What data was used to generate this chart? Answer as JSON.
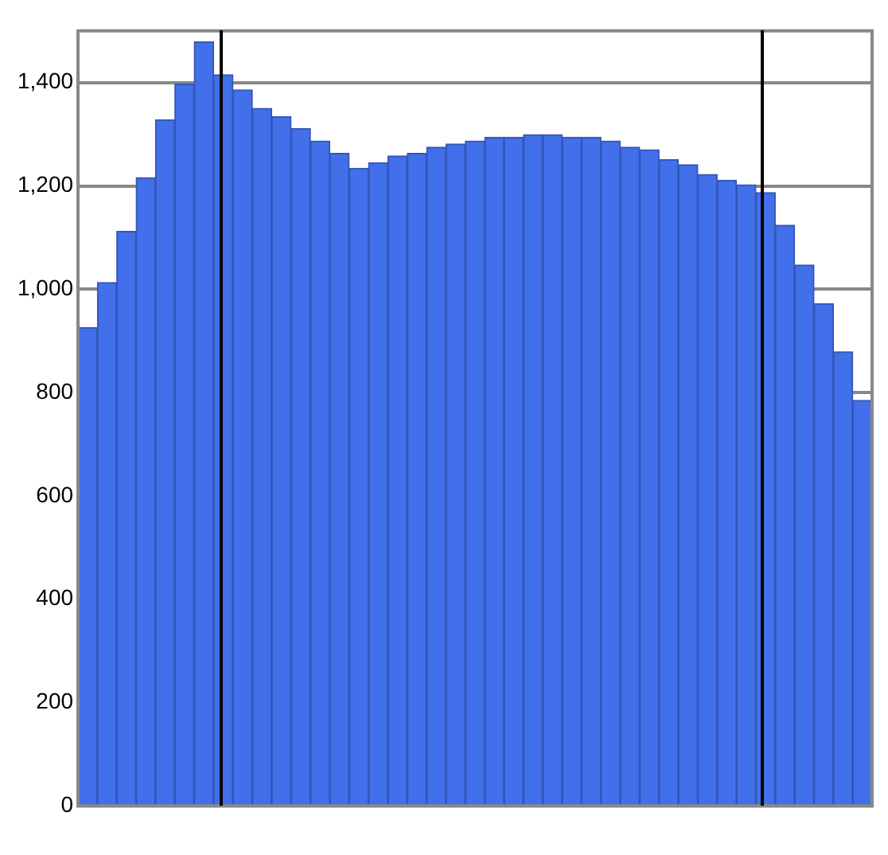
{
  "chart_data": {
    "type": "bar",
    "categories": [
      null,
      null,
      null,
      null,
      null,
      null,
      null,
      null,
      null,
      null,
      null,
      null,
      null,
      null,
      null,
      null,
      null,
      null,
      null,
      null,
      null,
      null,
      null,
      null,
      null,
      null,
      null,
      null,
      null,
      null,
      null,
      null,
      null,
      null,
      null,
      null,
      null,
      null,
      null,
      null,
      null
    ],
    "values": [
      926,
      1013,
      1112,
      1216,
      1328,
      1397,
      1479,
      1415,
      1386,
      1350,
      1334,
      1311,
      1287,
      1263,
      1234,
      1245,
      1258,
      1263,
      1275,
      1281,
      1287,
      1294,
      1294,
      1299,
      1299,
      1294,
      1294,
      1287,
      1275,
      1270,
      1251,
      1241,
      1222,
      1211,
      1202,
      1187,
      1124,
      1047,
      972,
      879,
      785
    ],
    "color": "#4170ea",
    "ylim": [
      0,
      1500
    ],
    "yticks": [
      0,
      200,
      400,
      600,
      800,
      {
        "value": 1000,
        "label": "1,000"
      },
      {
        "value": 1200,
        "label": "1,200"
      },
      {
        "value": 1400,
        "label": "1,400"
      }
    ],
    "grid": "y"
  }
}
